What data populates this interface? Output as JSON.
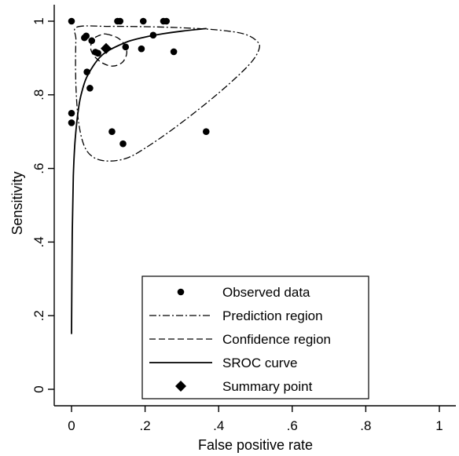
{
  "chart_data": {
    "type": "scatter",
    "xlabel": "False positive rate",
    "ylabel": "Sensitivity",
    "xlim": [
      0,
      1
    ],
    "ylim": [
      0,
      1
    ],
    "x_ticks": [
      {
        "value": 0,
        "label": "0"
      },
      {
        "value": 0.2,
        "label": ".2"
      },
      {
        "value": 0.4,
        "label": ".4"
      },
      {
        "value": 0.6,
        "label": ".6"
      },
      {
        "value": 0.8,
        "label": ".8"
      },
      {
        "value": 1,
        "label": "1"
      }
    ],
    "y_ticks": [
      {
        "value": 0,
        "label": "0"
      },
      {
        "value": 0.2,
        "label": ".2"
      },
      {
        "value": 0.4,
        "label": ".4"
      },
      {
        "value": 0.6,
        "label": ".6"
      },
      {
        "value": 0.8,
        "label": ".8"
      },
      {
        "value": 1,
        "label": "1"
      }
    ],
    "grid": false,
    "legend_position": "bottom-center",
    "legend": [
      {
        "key": "observed",
        "label": "Observed data",
        "style": "dot"
      },
      {
        "key": "prediction",
        "label": "Prediction region",
        "style": "dash-dot"
      },
      {
        "key": "confidence",
        "label": "Confidence region",
        "style": "dashed"
      },
      {
        "key": "sroc",
        "label": "SROC curve",
        "style": "solid"
      },
      {
        "key": "summary",
        "label": "Summary point",
        "style": "diamond"
      }
    ],
    "observed": [
      {
        "x": 0.0,
        "y": 1.0
      },
      {
        "x": 0.0,
        "y": 0.75
      },
      {
        "x": 0.0,
        "y": 0.724
      },
      {
        "x": 0.035,
        "y": 0.955
      },
      {
        "x": 0.04,
        "y": 0.96
      },
      {
        "x": 0.042,
        "y": 0.862
      },
      {
        "x": 0.05,
        "y": 0.818
      },
      {
        "x": 0.055,
        "y": 0.947
      },
      {
        "x": 0.065,
        "y": 0.916
      },
      {
        "x": 0.072,
        "y": 0.913
      },
      {
        "x": 0.11,
        "y": 0.7
      },
      {
        "x": 0.125,
        "y": 1.0
      },
      {
        "x": 0.132,
        "y": 1.0
      },
      {
        "x": 0.14,
        "y": 0.667
      },
      {
        "x": 0.147,
        "y": 0.93
      },
      {
        "x": 0.19,
        "y": 0.925
      },
      {
        "x": 0.195,
        "y": 1.0
      },
      {
        "x": 0.222,
        "y": 0.962
      },
      {
        "x": 0.25,
        "y": 1.0
      },
      {
        "x": 0.258,
        "y": 1.0
      },
      {
        "x": 0.278,
        "y": 0.917
      },
      {
        "x": 0.366,
        "y": 0.7
      }
    ],
    "summary_point": {
      "x": 0.094,
      "y": 0.926
    },
    "sroc_curve": [
      {
        "x": 0.0,
        "y": 0.15
      },
      {
        "x": 0.002,
        "y": 0.42
      },
      {
        "x": 0.005,
        "y": 0.58
      },
      {
        "x": 0.01,
        "y": 0.68
      },
      {
        "x": 0.02,
        "y": 0.77
      },
      {
        "x": 0.03,
        "y": 0.815
      },
      {
        "x": 0.04,
        "y": 0.845
      },
      {
        "x": 0.06,
        "y": 0.88
      },
      {
        "x": 0.08,
        "y": 0.905
      },
      {
        "x": 0.1,
        "y": 0.92
      },
      {
        "x": 0.13,
        "y": 0.935
      },
      {
        "x": 0.16,
        "y": 0.947
      },
      {
        "x": 0.2,
        "y": 0.957
      },
      {
        "x": 0.25,
        "y": 0.966
      },
      {
        "x": 0.3,
        "y": 0.973
      },
      {
        "x": 0.367,
        "y": 0.98
      }
    ],
    "confidence_region": [
      {
        "x": 0.094,
        "y": 0.965
      },
      {
        "x": 0.125,
        "y": 0.955
      },
      {
        "x": 0.145,
        "y": 0.935
      },
      {
        "x": 0.15,
        "y": 0.912
      },
      {
        "x": 0.138,
        "y": 0.888
      },
      {
        "x": 0.112,
        "y": 0.878
      },
      {
        "x": 0.085,
        "y": 0.886
      },
      {
        "x": 0.062,
        "y": 0.905
      },
      {
        "x": 0.052,
        "y": 0.928
      },
      {
        "x": 0.06,
        "y": 0.952
      },
      {
        "x": 0.08,
        "y": 0.963
      }
    ],
    "prediction_region": [
      {
        "x": 0.015,
        "y": 0.984
      },
      {
        "x": 0.1,
        "y": 0.986
      },
      {
        "x": 0.2,
        "y": 0.985
      },
      {
        "x": 0.3,
        "y": 0.982
      },
      {
        "x": 0.4,
        "y": 0.976
      },
      {
        "x": 0.47,
        "y": 0.965
      },
      {
        "x": 0.505,
        "y": 0.945
      },
      {
        "x": 0.51,
        "y": 0.925
      },
      {
        "x": 0.49,
        "y": 0.89
      },
      {
        "x": 0.44,
        "y": 0.84
      },
      {
        "x": 0.37,
        "y": 0.78
      },
      {
        "x": 0.28,
        "y": 0.71
      },
      {
        "x": 0.2,
        "y": 0.655
      },
      {
        "x": 0.15,
        "y": 0.628
      },
      {
        "x": 0.1,
        "y": 0.62
      },
      {
        "x": 0.06,
        "y": 0.63
      },
      {
        "x": 0.035,
        "y": 0.66
      },
      {
        "x": 0.02,
        "y": 0.72
      },
      {
        "x": 0.013,
        "y": 0.8
      },
      {
        "x": 0.011,
        "y": 0.88
      },
      {
        "x": 0.012,
        "y": 0.95
      }
    ]
  }
}
